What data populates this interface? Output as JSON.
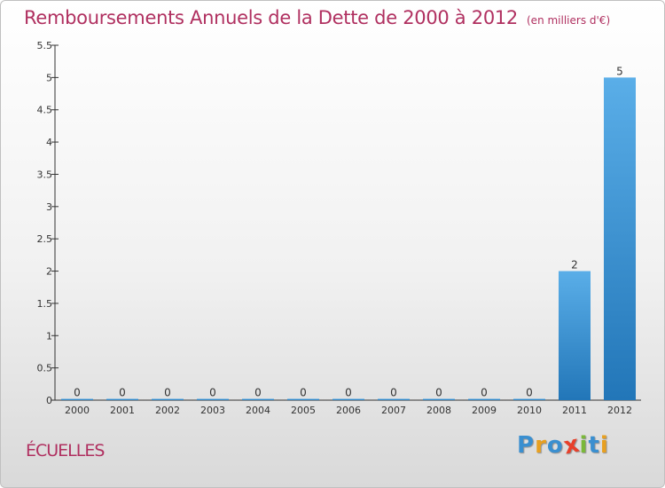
{
  "header": {
    "title": "Remboursements Annuels de la Dette de 2000 à 2012",
    "subtitle": "(en milliers d'€)"
  },
  "footer": {
    "place": "ÉCUELLES",
    "brand_letters": [
      {
        "ch": "P",
        "color": "#3a8fd0"
      },
      {
        "ch": "r",
        "color": "#e8a020"
      },
      {
        "ch": "o",
        "color": "#3a8fd0"
      },
      {
        "ch": "x",
        "color": "#e8402a"
      },
      {
        "ch": "i",
        "color": "#7ab83a"
      },
      {
        "ch": "t",
        "color": "#3a8fd0"
      },
      {
        "ch": "i",
        "color": "#e8a020"
      }
    ]
  },
  "colors": {
    "title": "#b03060",
    "bar_top": "#5aaee8",
    "bar_bottom": "#2276b8",
    "axis": "#333333"
  },
  "chart_data": {
    "type": "bar",
    "title": "Remboursements Annuels de la Dette de 2000 à 2012",
    "subtitle": "(en milliers d'€)",
    "categories": [
      "2000",
      "2001",
      "2002",
      "2003",
      "2004",
      "2005",
      "2006",
      "2007",
      "2008",
      "2009",
      "2010",
      "2011",
      "2012"
    ],
    "values": [
      0,
      0,
      0,
      0,
      0,
      0,
      0,
      0,
      0,
      0,
      0,
      2,
      5
    ],
    "data_labels": [
      "0",
      "0",
      "0",
      "0",
      "0",
      "0",
      "0",
      "0",
      "0",
      "0",
      "0",
      "2",
      "5"
    ],
    "ylim": [
      0,
      5.5
    ],
    "yticks": [
      0,
      0.5,
      1,
      1.5,
      2,
      2.5,
      3,
      3.5,
      4,
      4.5,
      5,
      5.5
    ],
    "ytick_labels": [
      "0",
      "0.5",
      "1",
      "1.5",
      "2",
      "2.5",
      "3",
      "3.5",
      "4",
      "4.5",
      "5",
      "5.5"
    ],
    "grid": false,
    "legend": "none"
  }
}
